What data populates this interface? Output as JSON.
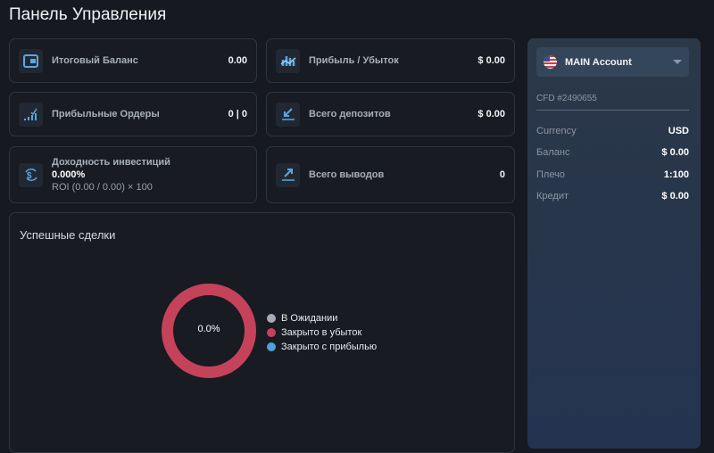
{
  "page_title": "Панель Управления",
  "cards": [
    {
      "label": "Итоговый Баланс",
      "value": "0.00",
      "icon": "wallet-icon"
    },
    {
      "label": "Прибыль / Убыток",
      "value": "$ 0.00",
      "icon": "profit-chart-icon"
    },
    {
      "label": "Прибыльные Ордеры",
      "value": "0 | 0",
      "icon": "bar-chart-check-icon"
    },
    {
      "label": "Всего депозитов",
      "value": "$ 0.00",
      "icon": "arrow-down-left-icon"
    },
    {
      "label": "Доходность инвестиций",
      "value": "0.000%",
      "formula": "ROI (0.00 / 0.00) × 100",
      "icon": "dollar-cycle-icon"
    },
    {
      "label": "Всего выводов",
      "value": "0",
      "icon": "arrow-up-right-icon"
    }
  ],
  "trades": {
    "title": "Успешные сделки",
    "center_label": "0.0%",
    "legend": [
      {
        "label": "В Ожидании",
        "color": "#a3abb8"
      },
      {
        "label": "Закрыто в убыток",
        "color": "#c4435a"
      },
      {
        "label": "Закрыто с прибылью",
        "color": "#4f9fd8"
      }
    ]
  },
  "account": {
    "name": "MAIN Account",
    "flag": "us-flag-icon",
    "cfd": "CFD #2490655",
    "rows": [
      {
        "key": "Currency",
        "value": "USD"
      },
      {
        "key": "Баланс",
        "value": "$ 0.00"
      },
      {
        "key": "Плечо",
        "value": "1:100"
      },
      {
        "key": "Кредит",
        "value": "$ 0.00"
      }
    ]
  }
}
